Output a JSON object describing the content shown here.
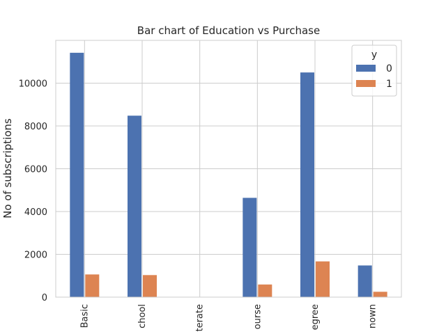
{
  "chart_data": {
    "type": "bar",
    "title": "Bar chart of Education vs Purchase",
    "xlabel": "",
    "ylabel": "No of subscriptions",
    "categories": [
      "Basic",
      "chool",
      "terate",
      "ourse",
      "egree",
      "nown"
    ],
    "series": [
      {
        "name": "0",
        "color": "#4c72b0",
        "values": [
          11420,
          8480,
          15,
          4640,
          10500,
          1480
        ]
      },
      {
        "name": "1",
        "color": "#dd8452",
        "values": [
          1060,
          1030,
          4,
          590,
          1670,
          250
        ]
      }
    ],
    "ylim": [
      0,
      12000
    ],
    "yticks": [
      0,
      2000,
      4000,
      6000,
      8000,
      10000
    ],
    "grid": true,
    "legend": {
      "title": "y",
      "position": "top-right"
    }
  }
}
